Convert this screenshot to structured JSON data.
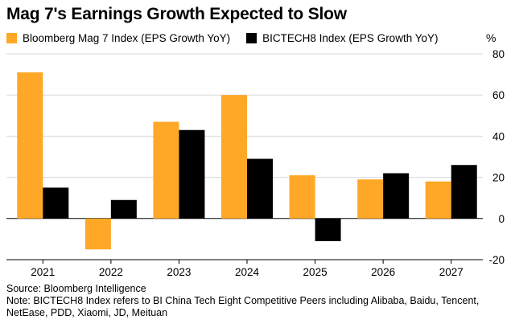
{
  "title": "Mag 7's Earnings Growth Expected to Slow",
  "legend": [
    {
      "label": "Bloomberg Mag 7 Index (EPS Growth YoY)",
      "color": "#FFA726"
    },
    {
      "label": "BICTECH8 Index (EPS Growth YoY)",
      "color": "#000000"
    }
  ],
  "unit_label": "%",
  "chart_data": {
    "type": "bar",
    "title": "Mag 7's Earnings Growth Expected to Slow",
    "xlabel": "",
    "ylabel": "%",
    "categories": [
      "2021",
      "2022",
      "2023",
      "2024",
      "2025",
      "2026",
      "2027"
    ],
    "series": [
      {
        "name": "Bloomberg Mag 7 Index (EPS Growth YoY)",
        "color": "#FFA726",
        "values": [
          71,
          -15,
          47,
          60,
          21,
          19,
          18
        ]
      },
      {
        "name": "BICTECH8 Index (EPS Growth YoY)",
        "color": "#000000",
        "values": [
          15,
          9,
          43,
          29,
          -11,
          22,
          26
        ]
      }
    ],
    "yticks": [
      80,
      60,
      40,
      20,
      0,
      -20
    ],
    "ylim": [
      -20,
      80
    ],
    "grid": true,
    "axis_side": "right",
    "legend_position": "top-left"
  },
  "footer": {
    "source": "Source: Bloomberg Intelligence",
    "note": "Note: BICTECH8 Index refers to BI China Tech Eight Competitive Peers including Alibaba, Baidu, Tencent, NetEase, PDD, Xiaomi, JD, Meituan"
  }
}
